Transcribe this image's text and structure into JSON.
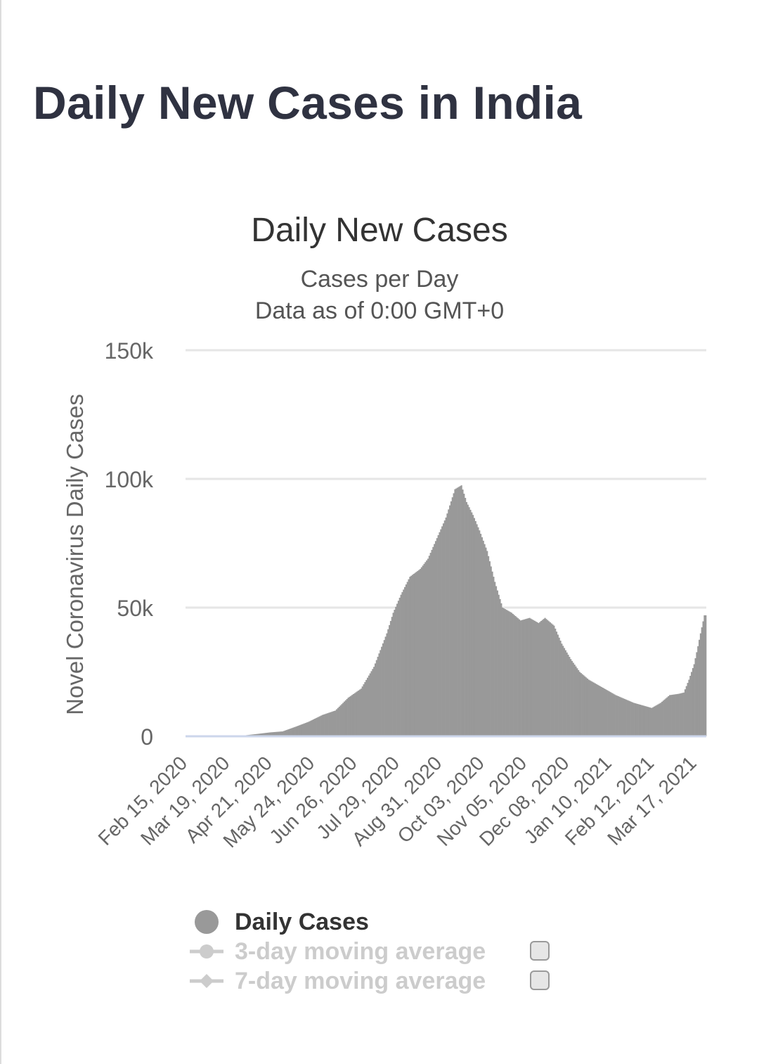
{
  "page": {
    "title": "Daily New Cases in India"
  },
  "chart_data": {
    "type": "bar",
    "title": "Daily New Cases",
    "subtitle_line1": "Cases per Day",
    "subtitle_line2": "Data as of 0:00 GMT+0",
    "xlabel": "",
    "ylabel": "Novel Coronavirus Daily Cases",
    "ylim": [
      0,
      150000
    ],
    "yticks": [
      0,
      50000,
      100000,
      150000
    ],
    "ytick_labels": [
      "0",
      "50k",
      "100k",
      "150k"
    ],
    "x_start": "2020-02-15",
    "x_end": "2021-03-25",
    "xtick_dates": [
      "2020-02-15",
      "2020-03-19",
      "2020-04-21",
      "2020-05-24",
      "2020-06-26",
      "2020-07-29",
      "2020-08-31",
      "2020-10-03",
      "2020-11-05",
      "2020-12-08",
      "2021-01-10",
      "2021-02-12",
      "2021-03-17"
    ],
    "xtick_labels": [
      "Feb 15, 2020",
      "Mar 19, 2020",
      "Apr 21, 2020",
      "May 24, 2020",
      "Jun 26, 2020",
      "Jul 29, 2020",
      "Aug 31, 2020",
      "Oct 03, 2020",
      "Nov 05, 2020",
      "Dec 08, 2020",
      "Jan 10, 2021",
      "Feb 12, 2021",
      "Mar 17, 2021"
    ],
    "grid": true,
    "legend_position": "bottom",
    "bar_color": "#999999",
    "series": [
      {
        "name": "Daily Cases",
        "points": [
          [
            "2020-02-15",
            0
          ],
          [
            "2020-03-10",
            0
          ],
          [
            "2020-03-20",
            100
          ],
          [
            "2020-04-01",
            400
          ],
          [
            "2020-04-10",
            900
          ],
          [
            "2020-04-20",
            1500
          ],
          [
            "2020-04-30",
            1900
          ],
          [
            "2020-05-10",
            3700
          ],
          [
            "2020-05-20",
            5600
          ],
          [
            "2020-05-31",
            8300
          ],
          [
            "2020-06-10",
            10000
          ],
          [
            "2020-06-20",
            15000
          ],
          [
            "2020-06-30",
            18500
          ],
          [
            "2020-07-10",
            27000
          ],
          [
            "2020-07-20",
            40000
          ],
          [
            "2020-07-25",
            48000
          ],
          [
            "2020-07-31",
            55000
          ],
          [
            "2020-08-07",
            62000
          ],
          [
            "2020-08-15",
            65000
          ],
          [
            "2020-08-21",
            69000
          ],
          [
            "2020-08-28",
            77000
          ],
          [
            "2020-09-04",
            85000
          ],
          [
            "2020-09-11",
            96000
          ],
          [
            "2020-09-16",
            97500
          ],
          [
            "2020-09-20",
            91000
          ],
          [
            "2020-09-25",
            86000
          ],
          [
            "2020-09-30",
            80000
          ],
          [
            "2020-10-06",
            72000
          ],
          [
            "2020-10-12",
            60000
          ],
          [
            "2020-10-18",
            50000
          ],
          [
            "2020-10-25",
            48000
          ],
          [
            "2020-11-01",
            45000
          ],
          [
            "2020-11-08",
            46000
          ],
          [
            "2020-11-15",
            44000
          ],
          [
            "2020-11-20",
            46000
          ],
          [
            "2020-11-27",
            43000
          ],
          [
            "2020-12-03",
            36000
          ],
          [
            "2020-12-10",
            30000
          ],
          [
            "2020-12-17",
            25000
          ],
          [
            "2020-12-24",
            22000
          ],
          [
            "2020-12-31",
            20000
          ],
          [
            "2021-01-07",
            18000
          ],
          [
            "2021-01-14",
            16000
          ],
          [
            "2021-01-21",
            14500
          ],
          [
            "2021-01-28",
            13000
          ],
          [
            "2021-02-04",
            12000
          ],
          [
            "2021-02-11",
            11000
          ],
          [
            "2021-02-18",
            13000
          ],
          [
            "2021-02-25",
            16000
          ],
          [
            "2021-03-04",
            16500
          ],
          [
            "2021-03-08",
            17000
          ],
          [
            "2021-03-12",
            22000
          ],
          [
            "2021-03-16",
            28000
          ],
          [
            "2021-03-19",
            35000
          ],
          [
            "2021-03-21",
            40000
          ],
          [
            "2021-03-24",
            47000
          ]
        ]
      }
    ]
  },
  "legend": {
    "items": [
      {
        "label": "Daily Cases"
      },
      {
        "label": "3-day moving average"
      },
      {
        "label": "7-day moving average"
      }
    ]
  }
}
